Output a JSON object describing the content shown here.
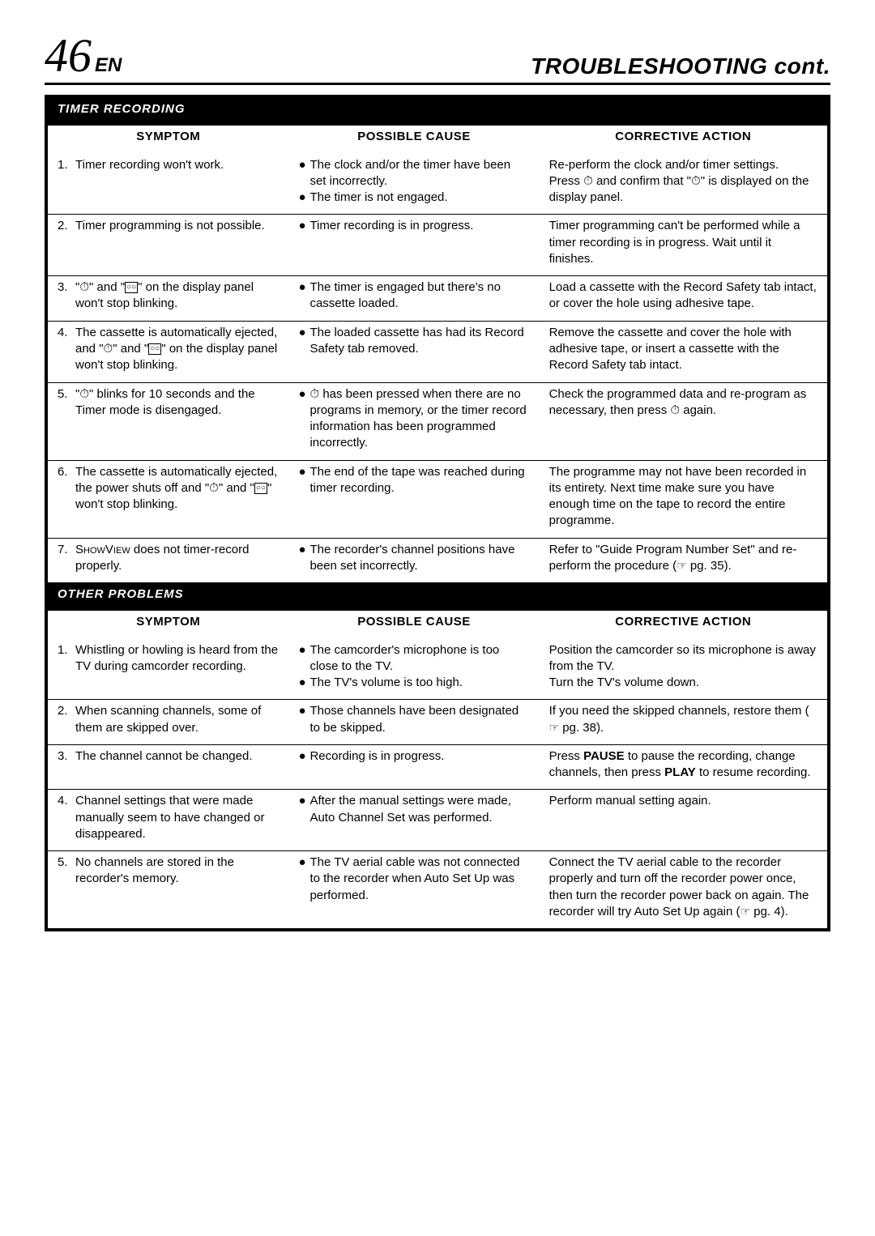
{
  "header": {
    "page_number": "46",
    "lang": "EN",
    "title": "TROUBLESHOOTING cont."
  },
  "colors": {
    "text": "#000000",
    "bg": "#ffffff",
    "section_bg": "#000000",
    "section_fg": "#ffffff"
  },
  "column_headers": {
    "symptom": "SYMPTOM",
    "cause": "POSSIBLE CAUSE",
    "action": "CORRECTIVE ACTION"
  },
  "sections": [
    {
      "title": "TIMER RECORDING",
      "rows": [
        {
          "n": "1.",
          "symptom": "Timer recording won't work.",
          "causes": [
            "The clock and/or the timer have been set incorrectly.",
            "The timer is not engaged."
          ],
          "action_html": "Re-perform the clock and/or timer settings.<br>Press <span class='icon-timer'>⏱</span> and confirm that \"<span class='icon-timer'>⏱</span>\" is displayed on the display panel."
        },
        {
          "n": "2.",
          "symptom": "Timer programming is not possible.",
          "causes": [
            "Timer recording is in progress."
          ],
          "action_html": "Timer programming can't be performed while a timer recording is in progress. Wait until it finishes."
        },
        {
          "n": "3.",
          "symptom_html": "\"<span class='icon-timer'>⏱</span>\" and \"<span class='icon-cassette'>○○</span>\" on the display panel won't stop blinking.",
          "causes": [
            "The timer is engaged but there's no cassette loaded."
          ],
          "action_html": "Load a cassette with the Record Safety tab intact, or cover the hole using adhesive tape."
        },
        {
          "n": "4.",
          "symptom_html": "The cassette is automatically ejected, and \"<span class='icon-timer'>⏱</span>\" and \"<span class='icon-cassette'>○○</span>\" on the display panel won't stop blinking.",
          "causes": [
            "The loaded cassette has had its Record Safety tab removed."
          ],
          "action_html": "Remove the cassette and cover the hole with adhesive tape, or insert a cassette with the Record Safety tab intact."
        },
        {
          "n": "5.",
          "symptom_html": "\"<span class='icon-timer'>⏱</span>\" blinks for 10 seconds and the Timer mode is disengaged.",
          "cause_html": "<span class='icon-timer'>⏱</span> has been pressed when there are no programs in memory, or the timer record information has been programmed incorrectly.",
          "action_html": "Check the programmed data and re-program as necessary, then press <span class='icon-timer'>⏱</span> again."
        },
        {
          "n": "6.",
          "symptom_html": "The cassette is automatically ejected, the power shuts off and \"<span class='icon-timer'>⏱</span>\" and \"<span class='icon-cassette'>○○</span>\" won't stop blinking.",
          "causes": [
            "The end of the tape was reached during timer recording."
          ],
          "action_html": "The programme may not have been recorded in its entirety. Next time make sure you have enough time on the tape to record the entire programme."
        },
        {
          "n": "7.",
          "symptom_html": "S<span class='smallcaps'>how</span>V<span class='smallcaps'>iew</span> does not timer-record properly.",
          "causes": [
            "The recorder's channel positions have been set incorrectly."
          ],
          "action_html": "Refer to \"Guide Program Number Set\" and re-perform the procedure (<span class='icon-pointer'>☞</span> pg. 35)."
        }
      ]
    },
    {
      "title": "OTHER PROBLEMS",
      "rows": [
        {
          "n": "1.",
          "symptom": "Whistling or howling is heard from the TV during camcorder recording.",
          "causes": [
            "The camcorder's microphone is too close to the TV.",
            "The TV's volume is too high."
          ],
          "action_html": "Position the camcorder so its microphone is away from the TV.<br>Turn the TV's volume down."
        },
        {
          "n": "2.",
          "symptom": "When scanning channels, some of them are skipped over.",
          "causes": [
            "Those channels have been designated to be skipped."
          ],
          "action_html": "If you need the skipped channels, restore them (<span class='icon-pointer'>☞</span> pg. 38)."
        },
        {
          "n": "3.",
          "symptom": "The channel cannot be changed.",
          "causes": [
            "Recording is in progress."
          ],
          "action_html": "Press <b>PAUSE</b> to pause the recording, change channels, then press <b>PLAY</b> to resume recording."
        },
        {
          "n": "4.",
          "symptom": "Channel settings that were made manually seem to have changed or disappeared.",
          "causes": [
            "After the manual settings were made, Auto Channel Set was performed."
          ],
          "action_html": "Perform manual setting again."
        },
        {
          "n": "5.",
          "symptom": "No channels are stored in the recorder's memory.",
          "causes": [
            "The TV aerial cable was not connected to the recorder when Auto Set Up was performed."
          ],
          "action_html": "Connect the TV aerial cable to the recorder properly and turn off the recorder power once, then turn the recorder power back on again. The recorder will try Auto Set Up again (<span class='icon-pointer'>☞</span> pg. 4)."
        }
      ]
    }
  ]
}
